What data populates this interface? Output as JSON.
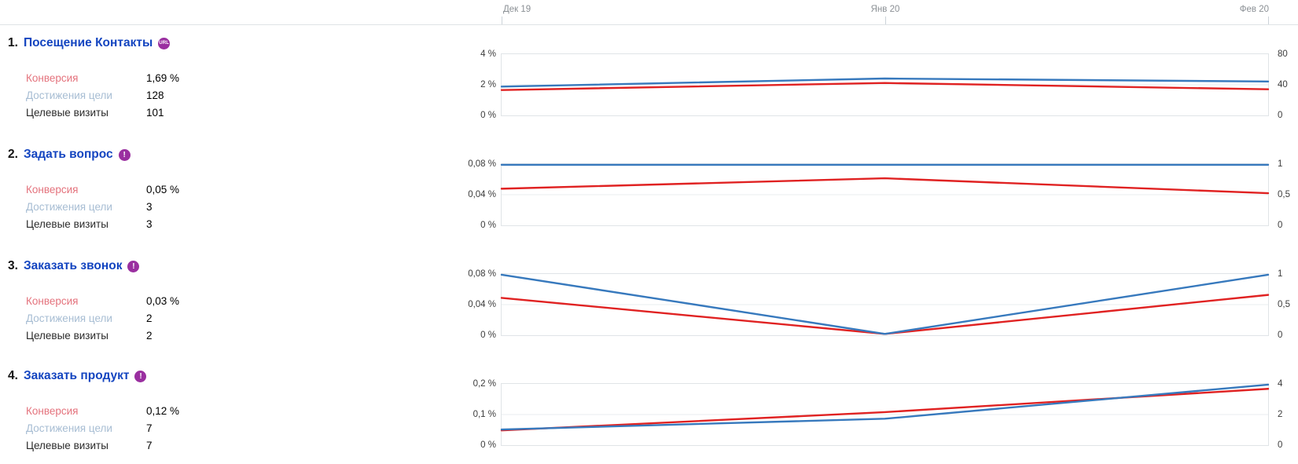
{
  "date_axis": {
    "labels": [
      "Дек 19",
      "Янв 20",
      "Фев 20"
    ]
  },
  "colors": {
    "conversion_line": "#e02222",
    "reaches_line": "#3779bd",
    "goal_link": "#1445c0",
    "badge": "#9a2fa0",
    "conversion_label": "#e4737d",
    "reaches_label": "#a7bdd3"
  },
  "goals": [
    {
      "index": "1.",
      "title": "Посещение Контакты",
      "badge": "URL",
      "metrics": [
        {
          "label": "Конверсия",
          "value": "1,69 %"
        },
        {
          "label": "Достижения цели",
          "value": "128"
        },
        {
          "label": "Целевые визиты",
          "value": "101"
        }
      ]
    },
    {
      "index": "2.",
      "title": "Задать вопрос",
      "badge": "!",
      "metrics": [
        {
          "label": "Конверсия",
          "value": "0,05 %"
        },
        {
          "label": "Достижения цели",
          "value": "3"
        },
        {
          "label": "Целевые визиты",
          "value": "3"
        }
      ]
    },
    {
      "index": "3.",
      "title": "Заказать звонок",
      "badge": "!",
      "metrics": [
        {
          "label": "Конверсия",
          "value": "0,03 %"
        },
        {
          "label": "Достижения цели",
          "value": "2"
        },
        {
          "label": "Целевые визиты",
          "value": "2"
        }
      ]
    },
    {
      "index": "4.",
      "title": "Заказать продукт",
      "badge": "!",
      "metrics": [
        {
          "label": "Конверсия",
          "value": "0,12 %"
        },
        {
          "label": "Достижения цели",
          "value": "7"
        },
        {
          "label": "Целевые визиты",
          "value": "7"
        }
      ]
    }
  ],
  "chart_data": [
    {
      "type": "line",
      "goal": "Посещение Контакты",
      "x": [
        "Дек 19",
        "Янв 20",
        "Фев 20"
      ],
      "series": [
        {
          "name": "Конверсия, %",
          "color": "#e02222",
          "values": [
            1.65,
            2.12,
            1.7
          ]
        },
        {
          "name": "Достижения цели",
          "color": "#3779bd",
          "values": [
            1.88,
            2.42,
            2.22
          ]
        }
      ],
      "ylim": [
        0,
        4
      ],
      "left_axis_ticks": [
        "4 %",
        "2 %",
        "0 %"
      ],
      "right_axis_ticks": [
        "80",
        "40",
        "0"
      ],
      "grid": "horizontal-mid"
    },
    {
      "type": "line",
      "goal": "Задать вопрос",
      "x": [
        "Дек 19",
        "Янв 20",
        "Фев 20"
      ],
      "series": [
        {
          "name": "Конверсия, %",
          "color": "#e02222",
          "values": [
            0.048,
            0.062,
            0.042
          ]
        },
        {
          "name": "Достижения цели",
          "color": "#3779bd",
          "values": [
            0.08,
            0.08,
            0.08
          ]
        }
      ],
      "ylim": [
        0,
        0.08
      ],
      "left_axis_ticks": [
        "0,08 %",
        "0,04 %",
        "0 %"
      ],
      "right_axis_ticks": [
        "1",
        "0,5",
        "0"
      ],
      "grid": "horizontal-mid"
    },
    {
      "type": "line",
      "goal": "Заказать звонок",
      "x": [
        "Дек 19",
        "Янв 20",
        "Фев 20"
      ],
      "series": [
        {
          "name": "Конверсия, %",
          "color": "#e02222",
          "values": [
            0.049,
            0.0008,
            0.053
          ]
        },
        {
          "name": "Достижения цели",
          "color": "#3779bd",
          "values": [
            0.08,
            0.0008,
            0.08
          ]
        }
      ],
      "ylim": [
        0,
        0.08
      ],
      "left_axis_ticks": [
        "0,08 %",
        "0,04 %",
        "0 %"
      ],
      "right_axis_ticks": [
        "1",
        "0,5",
        "0"
      ],
      "grid": "horizontal-mid"
    },
    {
      "type": "line",
      "goal": "Заказать продукт",
      "x": [
        "Дек 19",
        "Янв 20",
        "Фев 20"
      ],
      "series": [
        {
          "name": "Конверсия, %",
          "color": "#e02222",
          "values": [
            0.047,
            0.108,
            0.186
          ]
        },
        {
          "name": "Достижения цели",
          "color": "#3779bd",
          "values": [
            0.05,
            0.086,
            0.2
          ]
        }
      ],
      "ylim": [
        0,
        0.2
      ],
      "left_axis_ticks": [
        "0,2 %",
        "0,1 %",
        "0 %"
      ],
      "right_axis_ticks": [
        "4",
        "2",
        "0"
      ],
      "grid": "horizontal-mid"
    }
  ]
}
